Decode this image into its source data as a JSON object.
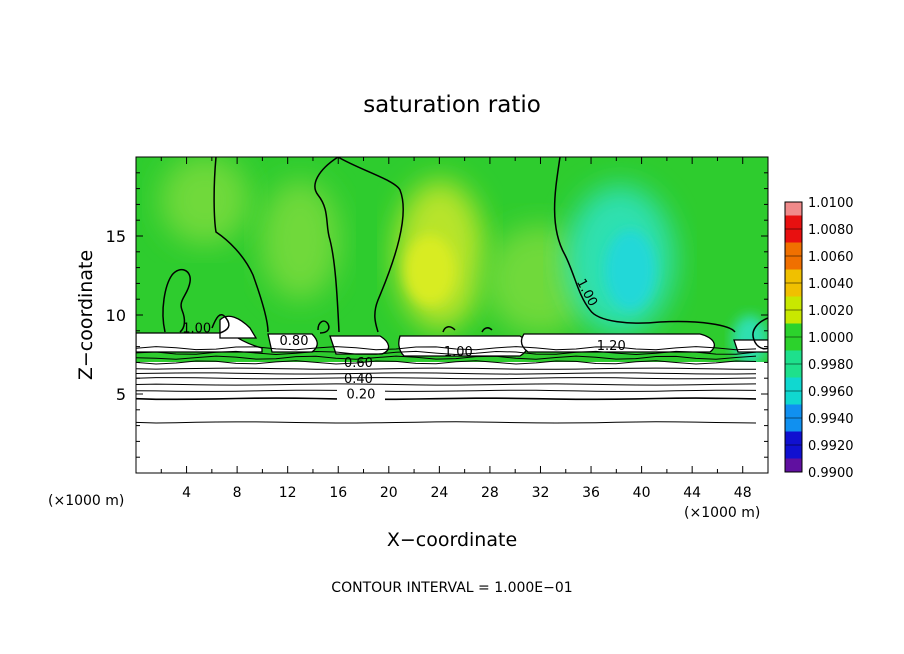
{
  "chart_data": {
    "type": "heatmap",
    "title": "saturation ratio",
    "xlabel": "X−coordinate",
    "ylabel": "Z−coordinate",
    "x_unit_left": "(×1000 m)",
    "x_unit_right": "(×1000 m)",
    "footer": "CONTOUR INTERVAL = 1.000E−01",
    "xlim": [
      0,
      50
    ],
    "ylim": [
      0,
      20
    ],
    "x_ticks": [
      4,
      8,
      12,
      16,
      20,
      24,
      28,
      32,
      36,
      40,
      44,
      48
    ],
    "x_tick_labels": [
      "4",
      "8",
      "12",
      "16",
      "20",
      "24",
      "28",
      "32",
      "36",
      "40",
      "44",
      "48"
    ],
    "y_ticks": [
      5,
      10,
      15
    ],
    "y_tick_labels": [
      "5",
      "10",
      "15"
    ],
    "colorbar": {
      "levels": [
        "1.0100",
        "1.0080",
        "1.0060",
        "1.0040",
        "1.0020",
        "1.0000",
        "0.9980",
        "0.9960",
        "0.9940",
        "0.9920",
        "0.9900"
      ],
      "colors": [
        "#f08a8a",
        "#e81010",
        "#f07000",
        "#f0c000",
        "#c8e800",
        "#2cd22c",
        "#1ee08c",
        "#10d8d0",
        "#1090f0",
        "#1010d0",
        "#6010a0"
      ]
    },
    "field_colors": {
      "background": "#2ecc2e",
      "yellow_green": "#b8e42a",
      "light_green": "#6fd93a",
      "cyan": "#2ee0b0",
      "deep_cyan": "#22d8d8",
      "subsaturated_layer": "#ffffff"
    },
    "contour_labels": [
      {
        "text": "1.00",
        "x": 4.8,
        "z": 8.9
      },
      {
        "text": "1.00",
        "x": 35.4,
        "z": 11.3
      },
      {
        "text": "1.00",
        "x": 25.5,
        "z": 7.4
      },
      {
        "text": "1.20",
        "x": 37.6,
        "z": 7.8
      },
      {
        "text": "0.80",
        "x": 12.5,
        "z": 8.1
      },
      {
        "text": "0.60",
        "x": 17.6,
        "z": 6.7
      },
      {
        "text": "0.40",
        "x": 17.6,
        "z": 5.7
      },
      {
        "text": "0.20",
        "x": 17.8,
        "z": 4.7
      }
    ],
    "lower_contour_levels_z": [
      7.9,
      7.6,
      7.3,
      7.0,
      6.6,
      6.3,
      6.0,
      5.6,
      5.2,
      4.7,
      3.2
    ]
  }
}
